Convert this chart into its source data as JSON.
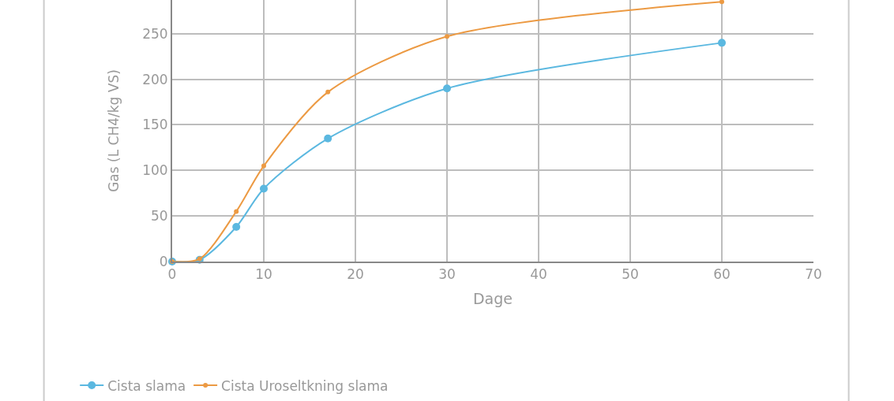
{
  "chart_data": {
    "type": "line",
    "xlabel": "Dage",
    "ylabel": "Gas (L CH4/kg VS)",
    "xlim": [
      0,
      70
    ],
    "xticks": [
      0,
      10,
      20,
      30,
      40,
      50,
      60,
      70
    ],
    "ylim": [
      0,
      287
    ],
    "yticks": [
      0,
      50,
      100,
      150,
      200,
      250
    ],
    "grid": true,
    "legend": "bottom",
    "marker": "circle",
    "line_style": "solid",
    "series": [
      {
        "name": "Cista slama",
        "color": "#5bb8e0",
        "x": [
          0,
          3,
          7,
          10,
          17,
          30,
          60
        ],
        "values": [
          0,
          2,
          38,
          80,
          135,
          190,
          240
        ]
      },
      {
        "name": "Cista Uroseltkning slama",
        "color": "#ec9a43",
        "x": [
          0,
          3,
          7,
          10,
          17,
          30,
          60
        ],
        "values": [
          0,
          3,
          55,
          105,
          186,
          247,
          285
        ]
      }
    ]
  }
}
